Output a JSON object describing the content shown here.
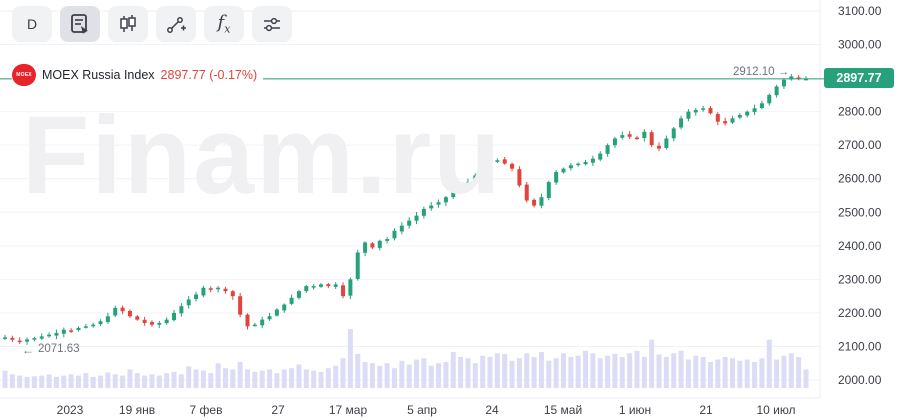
{
  "toolbar": {
    "interval_label": "D",
    "fx_label": "f",
    "fx_sub": "x",
    "icons": [
      "notes-icon",
      "candles-icon",
      "draw-tool-icon",
      "function-icon",
      "settings-sliders-icon"
    ]
  },
  "watermark": "Finam.ru",
  "legend": {
    "logo_text": "MOEX",
    "name": "MOEX Russia Index",
    "value": "2897.77 (-0.17%)"
  },
  "markers": {
    "last_price": "2897.77",
    "max_label": "2912.10",
    "min_label": "2071.63"
  },
  "colors": {
    "up": "#26a17b",
    "down": "#e0443d",
    "volume": "#dcdcf7",
    "price_line": "#26a17b"
  },
  "chart_data": {
    "type": "candlestick",
    "title": "MOEX Russia Index",
    "ylim": [
      1960,
      3130
    ],
    "y_ticks": [
      "3100.00",
      "3000.00",
      "2900.00",
      "2800.00",
      "2700.00",
      "2600.00",
      "2500.00",
      "2400.00",
      "2300.00",
      "2200.00",
      "2100.00",
      "2000.00"
    ],
    "x_ticks": [
      "2023",
      "19 янв",
      "7 фев",
      "27",
      "17 мар",
      "5 апр",
      "24",
      "15 май",
      "1 июн",
      "21",
      "10 июл"
    ],
    "last_price": 2897.77,
    "change": "-0.17%",
    "period_high": 2912.1,
    "period_low": 2071.63,
    "close_path": [
      2127,
      2120,
      2115,
      2121,
      2125,
      2130,
      2135,
      2140,
      2150,
      2148,
      2155,
      2160,
      2165,
      2175,
      2190,
      2215,
      2205,
      2190,
      2180,
      2170,
      2165,
      2170,
      2180,
      2200,
      2220,
      2240,
      2255,
      2275,
      2270,
      2275,
      2265,
      2250,
      2195,
      2160,
      2165,
      2180,
      2190,
      2210,
      2225,
      2245,
      2265,
      2280,
      2280,
      2285,
      2280,
      2285,
      2250,
      2300,
      2380,
      2410,
      2395,
      2415,
      2420,
      2445,
      2460,
      2475,
      2490,
      2510,
      2520,
      2530,
      2545,
      2560,
      2575,
      2590,
      2610,
      2630,
      2650,
      2655,
      2645,
      2630,
      2580,
      2535,
      2520,
      2545,
      2590,
      2620,
      2630,
      2640,
      2645,
      2650,
      2660,
      2675,
      2700,
      2720,
      2730,
      2725,
      2720,
      2740,
      2700,
      2690,
      2720,
      2750,
      2780,
      2800,
      2805,
      2810,
      2795,
      2770,
      2765,
      2780,
      2790,
      2800,
      2810,
      2825,
      2850,
      2875,
      2895,
      2905,
      2900,
      2897.77
    ],
    "volume_profile": [
      0.28,
      0.22,
      0.2,
      0.18,
      0.19,
      0.2,
      0.22,
      0.18,
      0.2,
      0.22,
      0.2,
      0.24,
      0.18,
      0.2,
      0.25,
      0.22,
      0.2,
      0.3,
      0.24,
      0.2,
      0.22,
      0.2,
      0.24,
      0.26,
      0.22,
      0.35,
      0.3,
      0.28,
      0.24,
      0.4,
      0.32,
      0.3,
      0.42,
      0.3,
      0.26,
      0.28,
      0.3,
      0.24,
      0.3,
      0.32,
      0.38,
      0.3,
      0.28,
      0.26,
      0.32,
      0.36,
      0.48,
      0.95,
      0.55,
      0.42,
      0.4,
      0.36,
      0.4,
      0.32,
      0.44,
      0.38,
      0.46,
      0.48,
      0.36,
      0.4,
      0.42,
      0.58,
      0.5,
      0.48,
      0.4,
      0.52,
      0.5,
      0.56,
      0.55,
      0.44,
      0.48,
      0.56,
      0.5,
      0.58,
      0.44,
      0.48,
      0.56,
      0.5,
      0.52,
      0.6,
      0.56,
      0.48,
      0.52,
      0.55,
      0.5,
      0.56,
      0.6,
      0.5,
      0.78,
      0.54,
      0.5,
      0.56,
      0.6,
      0.46,
      0.52,
      0.5,
      0.42,
      0.46,
      0.5,
      0.48,
      0.44,
      0.46,
      0.42,
      0.48,
      0.78,
      0.46,
      0.52,
      0.56,
      0.5,
      0.3
    ]
  }
}
